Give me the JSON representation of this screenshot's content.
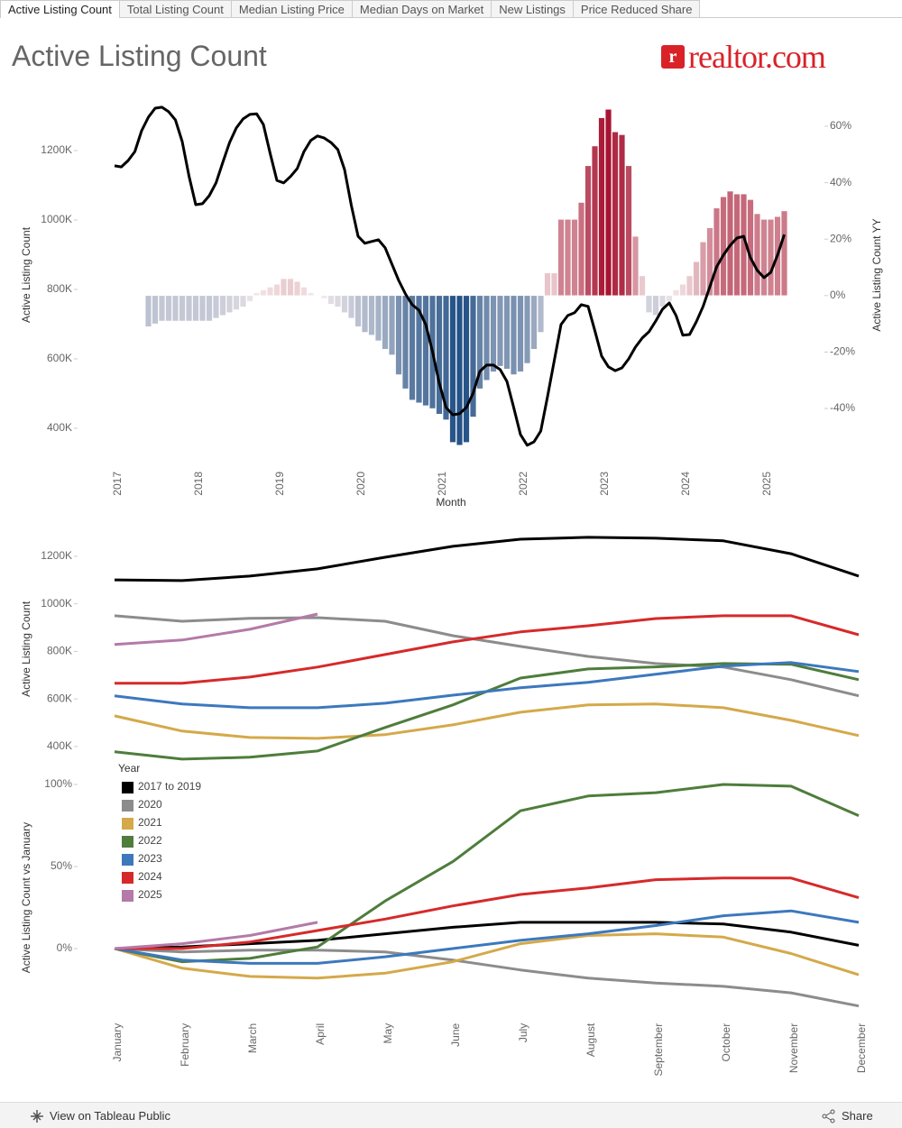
{
  "tabs": [
    "Active Listing Count",
    "Total Listing Count",
    "Median Listing Price",
    "Median Days on Market",
    "New Listings",
    "Price Reduced Share"
  ],
  "header": {
    "title": "Active Listing Count",
    "logo": "realtor.com"
  },
  "footer": {
    "link": "View on Tableau Public",
    "share": "Share"
  },
  "chart_data": [
    {
      "type": "bar_line",
      "xlabel": "Month",
      "ylabel": "Active Listing Count",
      "y2label": "Active Listing Count YY",
      "categories": [
        "2017",
        null,
        null,
        null,
        null,
        null,
        null,
        null,
        null,
        null,
        null,
        null,
        "2018",
        null,
        null,
        null,
        null,
        null,
        null,
        null,
        null,
        null,
        null,
        null,
        "2019",
        null,
        null,
        null,
        null,
        null,
        null,
        null,
        null,
        null,
        null,
        null,
        "2020",
        null,
        null,
        null,
        null,
        null,
        null,
        null,
        null,
        null,
        null,
        null,
        "2021",
        null,
        null,
        null,
        null,
        null,
        null,
        null,
        null,
        null,
        null,
        null,
        "2022",
        null,
        null,
        null,
        null,
        null,
        null,
        null,
        null,
        null,
        null,
        null,
        "2023",
        null,
        null,
        null,
        null,
        null,
        null,
        null,
        null,
        null,
        null,
        null,
        "2024",
        null,
        null,
        null,
        null,
        null,
        null,
        null,
        null,
        null,
        null,
        null,
        "2025",
        null,
        null,
        null
      ],
      "ylim": [
        335000,
        1335000
      ],
      "yticks": [
        {
          "value": 400000,
          "label": "400K"
        },
        {
          "value": 600000,
          "label": "600K"
        },
        {
          "value": 800000,
          "label": "800K"
        },
        {
          "value": 1000000,
          "label": "1000K"
        },
        {
          "value": 1200000,
          "label": "1200K"
        }
      ],
      "y2lim": [
        -55,
        68
      ],
      "y2ticks": [
        {
          "value": -40,
          "label": "-40%"
        },
        {
          "value": -20,
          "label": "-20%"
        },
        {
          "value": 0,
          "label": "0%"
        },
        {
          "value": 20,
          "label": "20%"
        },
        {
          "value": 40,
          "label": "40%"
        },
        {
          "value": 60,
          "label": "60%"
        }
      ],
      "color_scale": {
        "negative": "#1f4e84",
        "neutral": "#f6eded",
        "positive": "#a50f2d"
      },
      "series": [
        {
          "kind": "bar",
          "axis": "y2",
          "values": [
            null,
            null,
            null,
            null,
            null,
            -11,
            -10,
            -9,
            -9,
            -9,
            -9,
            -9,
            -9,
            -9,
            -9,
            -8,
            -7,
            -6,
            -5,
            -4,
            -2,
            1,
            2,
            3,
            4,
            6,
            6,
            5,
            3,
            1,
            0,
            -1,
            -3,
            -4,
            -6,
            -8,
            -11,
            -13,
            -14,
            -16,
            -19,
            -21,
            -28,
            -33,
            -37,
            -38,
            -39,
            -40,
            -42,
            -44,
            -52,
            -53,
            -52,
            -43,
            -33,
            -30,
            -27,
            -25,
            -26,
            -28,
            -27,
            -24,
            -19,
            -13,
            8,
            8,
            27,
            27,
            27,
            33,
            46,
            53,
            63,
            66,
            58,
            57,
            46,
            21,
            7,
            -6,
            -7,
            -4,
            -2,
            2,
            4,
            7,
            12,
            19,
            24,
            31,
            35,
            37,
            36,
            36,
            34,
            29,
            27,
            27,
            28,
            30
          ]
        },
        {
          "kind": "line",
          "color": "#000000",
          "values": [
            1156000,
            1153000,
            1171000,
            1197000,
            1257000,
            1296000,
            1322000,
            1325000,
            1312000,
            1288000,
            1226000,
            1127000,
            1044000,
            1047000,
            1070000,
            1107000,
            1166000,
            1223000,
            1265000,
            1291000,
            1304000,
            1306000,
            1275000,
            1192000,
            1114000,
            1107000,
            1125000,
            1148000,
            1197000,
            1229000,
            1242000,
            1236000,
            1223000,
            1203000,
            1145000,
            1042000,
            953000,
            933000,
            938000,
            943000,
            920000,
            873000,
            826000,
            787000,
            756000,
            740000,
            699000,
            621000,
            530000,
            460000,
            439000,
            442000,
            460000,
            501000,
            564000,
            582000,
            582000,
            569000,
            535000,
            460000,
            382000,
            351000,
            361000,
            392000,
            491000,
            595000,
            699000,
            725000,
            733000,
            756000,
            751000,
            681000,
            608000,
            577000,
            566000,
            574000,
            600000,
            634000,
            660000,
            678000,
            709000,
            743000,
            761000,
            725000,
            668000,
            670000,
            707000,
            751000,
            808000,
            865000,
            899000,
            927000,
            948000,
            953000,
            891000,
            855000,
            834000,
            849000,
            899000,
            958000
          ]
        }
      ]
    },
    {
      "type": "line",
      "ylabel": "Active Listing Count",
      "ylim": [
        320000,
        1300000
      ],
      "yticks": [
        {
          "value": 400000,
          "label": "400K"
        },
        {
          "value": 600000,
          "label": "600K"
        },
        {
          "value": 800000,
          "label": "800K"
        },
        {
          "value": 1000000,
          "label": "1000K"
        },
        {
          "value": 1200000,
          "label": "1200K"
        }
      ],
      "series": [
        {
          "color": "#000000",
          "values": [
            1101000,
            1098000,
            1117000,
            1147000,
            1196000,
            1242000,
            1272000,
            1280000,
            1276000,
            1265000,
            1211000,
            1117000
          ]
        },
        {
          "color": "#8c8c8c",
          "values": [
            950000,
            927000,
            939000,
            942000,
            927000,
            866000,
            821000,
            779000,
            749000,
            734000,
            681000,
            613000
          ]
        },
        {
          "color": "#d4a94a",
          "values": [
            529000,
            465000,
            438000,
            434000,
            450000,
            491000,
            544000,
            575000,
            579000,
            563000,
            510000,
            446000
          ]
        },
        {
          "color": "#4e7d3c",
          "values": [
            378000,
            347000,
            355000,
            381000,
            480000,
            575000,
            688000,
            726000,
            735000,
            749000,
            746000,
            681000
          ]
        },
        {
          "color": "#3d78bd",
          "values": [
            613000,
            579000,
            563000,
            563000,
            582000,
            616000,
            647000,
            670000,
            704000,
            738000,
            753000,
            715000
          ]
        },
        {
          "color": "#d62a2a",
          "values": [
            666000,
            666000,
            692000,
            734000,
            787000,
            840000,
            882000,
            908000,
            938000,
            950000,
            950000,
            870000
          ]
        },
        {
          "color": "#b47aa8",
          "values": [
            829000,
            848000,
            893000,
            957000,
            null,
            null,
            null,
            null,
            null,
            null,
            null,
            null
          ]
        }
      ]
    },
    {
      "type": "line",
      "ylabel": "Active Listing Count vs January",
      "legend_title": "Year",
      "categories": [
        "January",
        "February",
        "March",
        "April",
        "May",
        "June",
        "July",
        "August",
        "September",
        "October",
        "November",
        "December"
      ],
      "ylim": [
        -40,
        102
      ],
      "yticks": [
        {
          "value": 0,
          "label": "0%"
        },
        {
          "value": 50,
          "label": "50%"
        },
        {
          "value": 100,
          "label": "100%"
        }
      ],
      "series": [
        {
          "name": "2017 to 2019",
          "color": "#000000",
          "values": [
            0,
            1,
            3,
            5,
            9,
            13,
            16,
            16,
            16,
            15,
            10,
            2
          ]
        },
        {
          "name": "2020",
          "color": "#8c8c8c",
          "values": [
            0,
            -2,
            -1,
            -1,
            -2,
            -7,
            -13,
            -18,
            -21,
            -23,
            -27,
            -35
          ]
        },
        {
          "name": "2021",
          "color": "#d4a94a",
          "values": [
            0,
            -12,
            -17,
            -18,
            -15,
            -8,
            3,
            8,
            9,
            7,
            -3,
            -16
          ]
        },
        {
          "name": "2022",
          "color": "#4e7d3c",
          "values": [
            0,
            -8,
            -6,
            1,
            29,
            53,
            84,
            93,
            95,
            100,
            99,
            81
          ]
        },
        {
          "name": "2023",
          "color": "#3d78bd",
          "values": [
            0,
            -7,
            -9,
            -9,
            -5,
            0,
            5,
            9,
            14,
            20,
            23,
            16
          ]
        },
        {
          "name": "2024",
          "color": "#d62a2a",
          "values": [
            0,
            0,
            4,
            11,
            18,
            26,
            33,
            37,
            42,
            43,
            43,
            31
          ]
        },
        {
          "name": "2025",
          "color": "#b47aa8",
          "values": [
            0,
            3,
            8,
            16,
            null,
            null,
            null,
            null,
            null,
            null,
            null,
            null
          ]
        }
      ]
    }
  ]
}
